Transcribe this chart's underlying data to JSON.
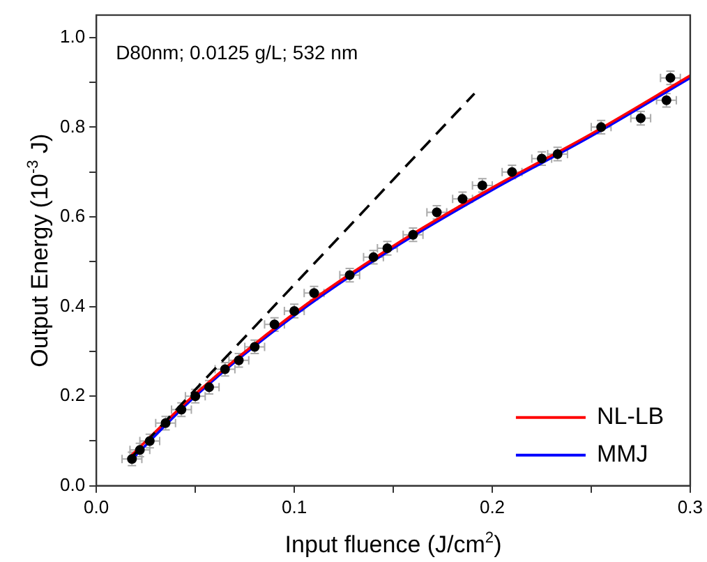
{
  "chart_data": {
    "type": "scatter",
    "xlabel": "Input fluence (J/cm$^{2}$)",
    "ylabel": "Output Energy (10$^{-3}$ J)",
    "annotations": [
      "D80nm; 0.0125 g/L; 532 nm"
    ],
    "xlim": [
      0,
      0.3
    ],
    "ylim": [
      0,
      1.05
    ],
    "xticks": [
      {
        "value": 0,
        "label": "0.0"
      },
      {
        "value": 0.05,
        "label": null
      },
      0.1,
      {
        "value": 0.15,
        "label": null
      },
      0.2,
      {
        "value": 0.25,
        "label": null
      },
      0.3
    ],
    "yticks": [
      {
        "value": 0,
        "label": "0.0"
      },
      {
        "value": 0.1,
        "label": null
      },
      0.2,
      {
        "value": 0.3,
        "label": null
      },
      0.4,
      {
        "value": 0.5,
        "label": null
      },
      0.6,
      {
        "value": 0.7,
        "label": null
      },
      0.8,
      {
        "value": 0.9,
        "label": null
      },
      {
        "value": 1,
        "label": "1.0"
      }
    ],
    "grid": false,
    "legend": "bottom right",
    "series": [
      {
        "marker": "circle",
        "color": "#000000",
        "x": [
          0.018,
          0.022,
          0.027,
          0.035,
          0.043,
          0.05,
          0.057,
          0.065,
          0.072,
          0.08,
          0.09,
          0.1,
          0.11,
          0.128,
          0.14,
          0.147,
          0.16,
          0.172,
          0.185,
          0.195,
          0.21,
          0.225,
          0.233,
          0.255,
          0.275,
          0.288,
          0.29
        ],
        "values": [
          0.06,
          0.08,
          0.1,
          0.14,
          0.17,
          0.2,
          0.22,
          0.26,
          0.28,
          0.31,
          0.36,
          0.39,
          0.43,
          0.47,
          0.51,
          0.53,
          0.56,
          0.61,
          0.64,
          0.67,
          0.7,
          0.73,
          0.74,
          0.8,
          0.82,
          0.86,
          0.91
        ],
        "errors": [
          0.015,
          0.015,
          0.015,
          0.015,
          0.015,
          0.015,
          0.015,
          0.015,
          0.015,
          0.015,
          0.015,
          0.015,
          0.015,
          0.015,
          0.015,
          0.015,
          0.015,
          0.015,
          0.015,
          0.015,
          0.015,
          0.015,
          0.015,
          0.015,
          0.015,
          0.015,
          0.015
        ],
        "xerrors": [
          0.005,
          0.005,
          0.005,
          0.005,
          0.005,
          0.005,
          0.005,
          0.005,
          0.005,
          0.005,
          0.005,
          0.005,
          0.005,
          0.005,
          0.005,
          0.005,
          0.005,
          0.005,
          0.005,
          0.005,
          0.005,
          0.005,
          0.005,
          0.005,
          0.005,
          0.005,
          0.005
        ]
      },
      {
        "type": "line",
        "line_style": "dashed",
        "color": "#000000",
        "x": [
          0.017,
          0.191
        ],
        "values": [
          0.06,
          0.875
        ]
      },
      {
        "type": "line",
        "marker": "none",
        "name": "NL-LB",
        "color": "#ff0000",
        "x": [
          0.017,
          0.05,
          0.1,
          0.15,
          0.2,
          0.25,
          0.3
        ],
        "values": [
          0.065,
          0.205,
          0.385,
          0.535,
          0.665,
          0.785,
          0.915
        ]
      },
      {
        "type": "line",
        "marker": "none",
        "name": "MMJ",
        "color": "#0000ff",
        "x": [
          0.017,
          0.05,
          0.1,
          0.15,
          0.2,
          0.25,
          0.3
        ],
        "values": [
          0.055,
          0.2,
          0.38,
          0.53,
          0.66,
          0.78,
          0.91
        ]
      }
    ]
  }
}
